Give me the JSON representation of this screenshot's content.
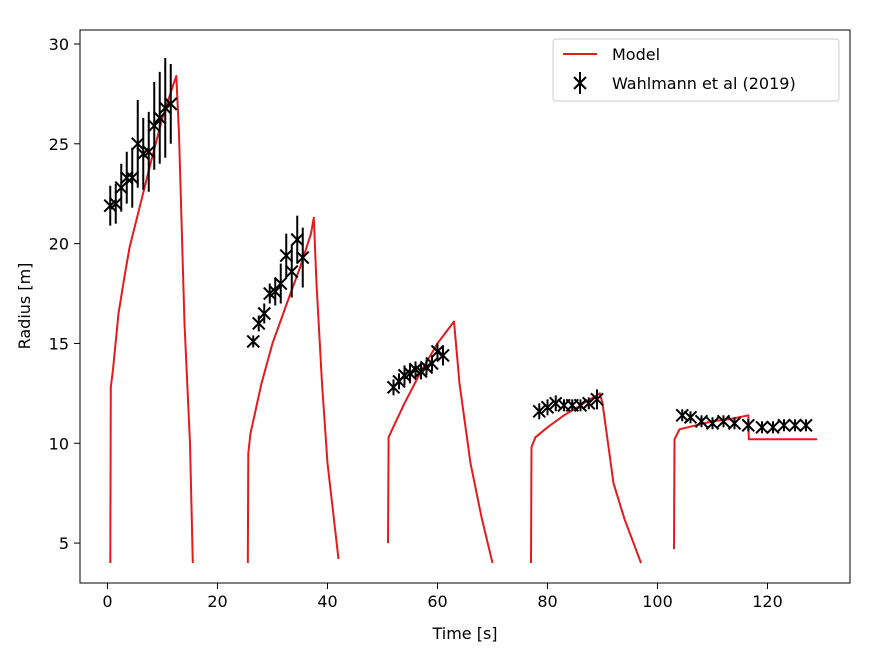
{
  "chart_data": {
    "type": "line",
    "xlabel": "Time [s]",
    "ylabel": "Radius [m]",
    "xlim": [
      -5,
      135
    ],
    "ylim": [
      3,
      30.7
    ],
    "xticks": [
      0,
      20,
      40,
      60,
      80,
      100,
      120
    ],
    "yticks": [
      5,
      10,
      15,
      20,
      25,
      30
    ],
    "grid": false,
    "legend_position": "top-right",
    "legend": [
      {
        "label": "Model",
        "marker": "line",
        "color": "#e41a1c"
      },
      {
        "label": "Wahlmann et al (2019)",
        "marker": "errorbar-x",
        "color": "#000000"
      }
    ],
    "series": [
      {
        "name": "Model",
        "color": "#e41a1c",
        "segments": [
          [
            [
              0.5,
              4.0
            ],
            [
              0.6,
              12.8
            ],
            [
              1.0,
              13.7
            ],
            [
              2,
              16.5
            ],
            [
              3,
              18.2
            ],
            [
              4,
              19.8
            ],
            [
              6,
              22.0
            ],
            [
              8,
              24.2
            ],
            [
              10,
              26.3
            ],
            [
              12,
              28.0
            ],
            [
              12.5,
              28.4
            ],
            [
              13,
              25.5
            ],
            [
              14,
              16.0
            ],
            [
              15,
              10.0
            ],
            [
              15.5,
              4.0
            ]
          ],
          [
            [
              25.5,
              4.0
            ],
            [
              25.6,
              9.5
            ],
            [
              26,
              10.5
            ],
            [
              28,
              13.0
            ],
            [
              30,
              15.0
            ],
            [
              33,
              17.3
            ],
            [
              35,
              18.8
            ],
            [
              37,
              20.5
            ],
            [
              37.5,
              21.3
            ],
            [
              38,
              18.0
            ],
            [
              39,
              13.0
            ],
            [
              40,
              9.0
            ],
            [
              42,
              4.2
            ]
          ],
          [
            [
              51.0,
              5.0
            ],
            [
              51.1,
              10.3
            ],
            [
              51.6,
              10.6
            ],
            [
              54,
              12.0
            ],
            [
              57,
              13.6
            ],
            [
              60,
              15.0
            ],
            [
              63,
              16.1
            ],
            [
              64,
              13.0
            ],
            [
              66,
              9.0
            ],
            [
              68,
              6.3
            ],
            [
              70,
              4.0
            ]
          ],
          [
            [
              77.0,
              4.0
            ],
            [
              77.1,
              9.8
            ],
            [
              77.8,
              10.3
            ],
            [
              80,
              10.8
            ],
            [
              83,
              11.4
            ],
            [
              86,
              11.9
            ],
            [
              89.5,
              12.5
            ],
            [
              90,
              12.0
            ],
            [
              91,
              10.0
            ],
            [
              92,
              8.0
            ],
            [
              94,
              6.2
            ],
            [
              97,
              4.0
            ]
          ],
          [
            [
              103.0,
              4.7
            ],
            [
              103.1,
              10.2
            ],
            [
              104,
              10.7
            ],
            [
              107,
              10.9
            ],
            [
              110,
              11.1
            ],
            [
              113,
              11.2
            ],
            [
              116.5,
              11.4
            ],
            [
              116.6,
              10.2
            ],
            [
              129,
              10.2
            ]
          ]
        ]
      },
      {
        "name": "Wahlmann et al (2019)",
        "color": "#000000",
        "points": [
          {
            "x": 0.5,
            "y": 21.9,
            "err": 1.0
          },
          {
            "x": 1.5,
            "y": 22.0,
            "err": 1.0
          },
          {
            "x": 2.5,
            "y": 22.8,
            "err": 1.2
          },
          {
            "x": 3.5,
            "y": 23.3,
            "err": 1.3
          },
          {
            "x": 4.5,
            "y": 23.3,
            "err": 1.5
          },
          {
            "x": 5.5,
            "y": 25.0,
            "err": 2.2
          },
          {
            "x": 6.5,
            "y": 24.5,
            "err": 1.8
          },
          {
            "x": 7.5,
            "y": 24.6,
            "err": 2.0
          },
          {
            "x": 8.5,
            "y": 25.9,
            "err": 2.2
          },
          {
            "x": 9.5,
            "y": 26.3,
            "err": 2.3
          },
          {
            "x": 10.5,
            "y": 26.8,
            "err": 2.5
          },
          {
            "x": 11.5,
            "y": 27.0,
            "err": 2.0
          },
          {
            "x": 26.5,
            "y": 15.1,
            "err": 0.3
          },
          {
            "x": 27.5,
            "y": 16.0,
            "err": 0.4
          },
          {
            "x": 28.5,
            "y": 16.5,
            "err": 0.5
          },
          {
            "x": 29.5,
            "y": 17.5,
            "err": 0.5
          },
          {
            "x": 30.5,
            "y": 17.6,
            "err": 0.7
          },
          {
            "x": 31.5,
            "y": 18.0,
            "err": 1.0
          },
          {
            "x": 32.5,
            "y": 19.4,
            "err": 1.1
          },
          {
            "x": 33.5,
            "y": 18.6,
            "err": 1.3
          },
          {
            "x": 34.5,
            "y": 20.2,
            "err": 1.2
          },
          {
            "x": 35.5,
            "y": 19.3,
            "err": 1.5
          },
          {
            "x": 52,
            "y": 12.8,
            "err": 0.4
          },
          {
            "x": 53,
            "y": 13.1,
            "err": 0.4
          },
          {
            "x": 54,
            "y": 13.4,
            "err": 0.5
          },
          {
            "x": 55,
            "y": 13.5,
            "err": 0.5
          },
          {
            "x": 56,
            "y": 13.7,
            "err": 0.4
          },
          {
            "x": 57,
            "y": 13.6,
            "err": 0.4
          },
          {
            "x": 58,
            "y": 13.8,
            "err": 0.4
          },
          {
            "x": 59,
            "y": 14.0,
            "err": 0.4
          },
          {
            "x": 60,
            "y": 14.6,
            "err": 0.4
          },
          {
            "x": 61,
            "y": 14.4,
            "err": 0.5
          },
          {
            "x": 78.5,
            "y": 11.6,
            "err": 0.4
          },
          {
            "x": 80,
            "y": 11.8,
            "err": 0.4
          },
          {
            "x": 81.5,
            "y": 12.0,
            "err": 0.4
          },
          {
            "x": 83,
            "y": 11.9,
            "err": 0.3
          },
          {
            "x": 84.5,
            "y": 11.9,
            "err": 0.3
          },
          {
            "x": 86,
            "y": 11.9,
            "err": 0.3
          },
          {
            "x": 87.5,
            "y": 12.0,
            "err": 0.3
          },
          {
            "x": 89,
            "y": 12.2,
            "err": 0.5
          },
          {
            "x": 104.5,
            "y": 11.4,
            "err": 0.3
          },
          {
            "x": 106,
            "y": 11.3,
            "err": 0.3
          },
          {
            "x": 108,
            "y": 11.1,
            "err": 0.3
          },
          {
            "x": 110,
            "y": 11.0,
            "err": 0.3
          },
          {
            "x": 112,
            "y": 11.1,
            "err": 0.3
          },
          {
            "x": 114,
            "y": 11.0,
            "err": 0.3
          },
          {
            "x": 116.5,
            "y": 10.9,
            "err": 0.3
          },
          {
            "x": 119,
            "y": 10.8,
            "err": 0.3
          },
          {
            "x": 121,
            "y": 10.8,
            "err": 0.3
          },
          {
            "x": 123,
            "y": 10.9,
            "err": 0.3
          },
          {
            "x": 125,
            "y": 10.9,
            "err": 0.3
          },
          {
            "x": 127,
            "y": 10.9,
            "err": 0.3
          }
        ]
      }
    ]
  }
}
